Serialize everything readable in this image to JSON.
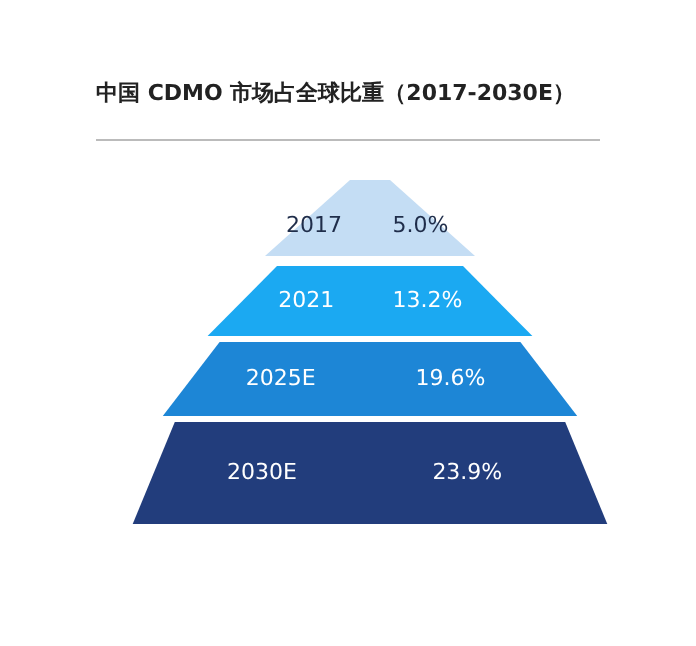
{
  "chart_data": {
    "type": "other",
    "title": "中国 CDMO 市场占全球比重（2017-2030E）",
    "categories": [
      "2017",
      "2021",
      "2025E",
      "2030E"
    ],
    "values": [
      5.0,
      13.2,
      19.6,
      23.9
    ],
    "value_labels": [
      "5.0%",
      "13.2%",
      "19.6%",
      "23.9%"
    ],
    "colors": [
      "#c4ddf4",
      "#1ba9f2",
      "#1d86d6",
      "#223d7c"
    ]
  }
}
